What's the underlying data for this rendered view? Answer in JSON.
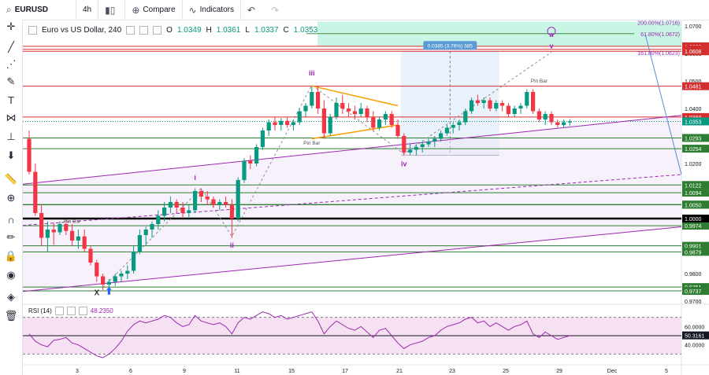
{
  "toolbar": {
    "symbol": "EURUSD",
    "interval": "4h",
    "compare_label": "Compare",
    "indicators_label": "Indicators"
  },
  "legend": {
    "title": "Euro vs US Dollar, 240",
    "o_label": "O",
    "o_value": "1.0349",
    "h_label": "H",
    "h_value": "1.0361",
    "l_label": "L",
    "l_value": "1.0337",
    "c_label": "C",
    "c_value": "1.0353"
  },
  "rsi": {
    "label": "RSI (14)",
    "value": "48.2350",
    "last": "50.3161"
  },
  "colors": {
    "up": "#089981",
    "down": "#f23645",
    "support": "#2e7d32",
    "resistance": "#d32f2f",
    "wave": "#9c27b0",
    "triangle": "#f59f00",
    "fib_zone": "#b2f2d8",
    "measure_zone": "#e3eefa",
    "rsi_band": "#f3d9ee"
  },
  "chart_data": {
    "type": "candlestick",
    "symbol": "EURUSD",
    "timeframe": "4h",
    "ylim": [
      0.97,
      1.072
    ],
    "x_ticks": [
      "3",
      "6",
      "9",
      "11",
      "15",
      "17",
      "21",
      "23",
      "25",
      "29",
      "Dec",
      "5"
    ],
    "y_ticks": [
      "1.0700",
      "1.0600",
      "1.0500",
      "1.0400",
      "1.0300",
      "1.0200",
      "1.0000",
      "0.9900",
      "0.9800",
      "0.9700"
    ],
    "resistance_levels": [
      "1.0626",
      "1.0615",
      "1.0608",
      "1.0481",
      "1.0369"
    ],
    "support_levels": [
      "1.0293",
      "1.0254",
      "1.0122",
      "1.0094",
      "1.0051",
      "1.0050",
      "0.9974",
      "0.9901",
      "0.9879",
      "0.9751",
      "0.9737"
    ],
    "parity_level": "1.0000",
    "current_price": "1.0353",
    "fib_labels": [
      "200.00%(1.0716)",
      "61.80%(1.0672)",
      "161.80%(1.0623)"
    ],
    "measure_label": "0.0385 (3.76%) 385",
    "wave_labels": [
      "i",
      "ii",
      "iii",
      "iv",
      "v",
      "a",
      "X"
    ],
    "pattern_labels": [
      "Pin Bar",
      "Pin Bar",
      "Pin Bar"
    ],
    "candles": [
      [
        1.029,
        1.032,
        1.016,
        1.017
      ],
      [
        1.017,
        1.02,
        1.001,
        1.002
      ],
      [
        1.002,
        1.005,
        0.99,
        0.993
      ],
      [
        0.993,
        0.999,
        0.988,
        0.996
      ],
      [
        0.996,
        0.9985,
        0.9905,
        0.995
      ],
      [
        0.995,
        0.999,
        0.994,
        0.998
      ],
      [
        0.998,
        0.9995,
        0.994,
        0.9955
      ],
      [
        0.9955,
        0.998,
        0.99,
        0.992
      ],
      [
        0.992,
        0.996,
        0.989,
        0.9935
      ],
      [
        0.9935,
        0.996,
        0.988,
        0.989
      ],
      [
        0.989,
        0.99,
        0.983,
        0.984
      ],
      [
        0.984,
        0.985,
        0.977,
        0.979
      ],
      [
        0.979,
        0.98,
        0.974,
        0.976
      ],
      [
        0.976,
        0.978,
        0.974,
        0.977
      ],
      [
        0.977,
        0.98,
        0.9755,
        0.979
      ],
      [
        0.979,
        0.981,
        0.977,
        0.98
      ],
      [
        0.98,
        0.983,
        0.978,
        0.981
      ],
      [
        0.981,
        0.99,
        0.98,
        0.988
      ],
      [
        0.988,
        0.996,
        0.987,
        0.994
      ],
      [
        0.994,
        0.997,
        0.99,
        0.996
      ],
      [
        0.996,
        0.999,
        0.993,
        0.998
      ],
      [
        0.998,
        1.003,
        0.996,
        1.001
      ],
      [
        1.001,
        1.006,
        0.999,
        1.004
      ],
      [
        1.004,
        1.008,
        1.002,
        1.006
      ],
      [
        1.006,
        1.007,
        1.002,
        1.004
      ],
      [
        1.004,
        1.006,
        1.0,
        1.002
      ],
      [
        1.002,
        1.005,
        1.0,
        1.003
      ],
      [
        1.003,
        1.011,
        1.002,
        1.01
      ],
      [
        1.01,
        1.011,
        1.006,
        1.008
      ],
      [
        1.008,
        1.01,
        1.005,
        1.007
      ],
      [
        1.007,
        1.008,
        1.004,
        1.005
      ],
      [
        1.005,
        1.007,
        1.003,
        1.006
      ],
      [
        1.006,
        1.008,
        1.004,
        1.005
      ],
      [
        1.005,
        1.007,
        0.993,
        1.0
      ],
      [
        1.0,
        1.015,
        0.999,
        1.014
      ],
      [
        1.014,
        1.022,
        1.013,
        1.021
      ],
      [
        1.021,
        1.023,
        1.018,
        1.02
      ],
      [
        1.02,
        1.027,
        1.019,
        1.026
      ],
      [
        1.026,
        1.033,
        1.025,
        1.032
      ],
      [
        1.032,
        1.036,
        1.03,
        1.035
      ],
      [
        1.035,
        1.037,
        1.032,
        1.034
      ],
      [
        1.034,
        1.0365,
        1.032,
        1.0355
      ],
      [
        1.0355,
        1.037,
        1.033,
        1.034
      ],
      [
        1.034,
        1.036,
        1.032,
        1.035
      ],
      [
        1.035,
        1.04,
        1.034,
        1.039
      ],
      [
        1.039,
        1.042,
        1.037,
        1.041
      ],
      [
        1.041,
        1.048,
        1.04,
        1.046
      ],
      [
        1.046,
        1.048,
        1.038,
        1.04
      ],
      [
        1.04,
        1.043,
        1.029,
        1.031
      ],
      [
        1.031,
        1.038,
        1.03,
        1.037
      ],
      [
        1.037,
        1.044,
        1.036,
        1.042
      ],
      [
        1.042,
        1.045,
        1.038,
        1.04
      ],
      [
        1.04,
        1.042,
        1.037,
        1.039
      ],
      [
        1.039,
        1.041,
        1.036,
        1.038
      ],
      [
        1.038,
        1.042,
        1.037,
        1.04
      ],
      [
        1.04,
        1.041,
        1.035,
        1.037
      ],
      [
        1.037,
        1.039,
        1.032,
        1.033
      ],
      [
        1.033,
        1.037,
        1.032,
        1.036
      ],
      [
        1.036,
        1.039,
        1.034,
        1.038
      ],
      [
        1.038,
        1.039,
        1.033,
        1.034
      ],
      [
        1.034,
        1.036,
        1.029,
        1.03
      ],
      [
        1.03,
        1.031,
        1.023,
        1.024
      ],
      [
        1.024,
        1.027,
        1.023,
        1.025
      ],
      [
        1.025,
        1.027,
        1.023,
        1.026
      ],
      [
        1.026,
        1.028,
        1.024,
        1.027
      ],
      [
        1.027,
        1.029,
        1.026,
        1.028
      ],
      [
        1.028,
        1.03,
        1.026,
        1.029
      ],
      [
        1.029,
        1.032,
        1.028,
        1.031
      ],
      [
        1.031,
        1.034,
        1.03,
        1.033
      ],
      [
        1.033,
        1.035,
        1.031,
        1.034
      ],
      [
        1.034,
        1.036,
        1.032,
        1.035
      ],
      [
        1.035,
        1.04,
        1.034,
        1.039
      ],
      [
        1.039,
        1.044,
        1.038,
        1.043
      ],
      [
        1.043,
        1.045,
        1.041,
        1.042
      ],
      [
        1.042,
        1.044,
        1.04,
        1.043
      ],
      [
        1.043,
        1.044,
        1.039,
        1.04
      ],
      [
        1.04,
        1.043,
        1.039,
        1.042
      ],
      [
        1.042,
        1.043,
        1.039,
        1.041
      ],
      [
        1.041,
        1.042,
        1.037,
        1.038
      ],
      [
        1.038,
        1.041,
        1.037,
        1.04
      ],
      [
        1.04,
        1.042,
        1.038,
        1.041
      ],
      [
        1.041,
        1.047,
        1.04,
        1.046
      ],
      [
        1.046,
        1.047,
        1.038,
        1.039
      ],
      [
        1.039,
        1.04,
        1.035,
        1.036
      ],
      [
        1.036,
        1.039,
        1.034,
        1.038
      ],
      [
        1.038,
        1.039,
        1.034,
        1.035
      ],
      [
        1.035,
        1.036,
        1.033,
        1.034
      ],
      [
        1.034,
        1.036,
        1.033,
        1.035
      ],
      [
        1.0349,
        1.0361,
        1.0337,
        1.0353
      ]
    ],
    "rsi": {
      "name": "RSI (14)",
      "ylim": [
        20,
        80
      ],
      "levels": [
        70,
        50,
        30
      ],
      "y_ticks": [
        "60.0000",
        "40.0000"
      ],
      "values": [
        52,
        44,
        40,
        38,
        45,
        46,
        48,
        42,
        40,
        36,
        32,
        28,
        26,
        30,
        36,
        44,
        55,
        62,
        66,
        64,
        66,
        68,
        72,
        70,
        64,
        60,
        62,
        72,
        66,
        64,
        62,
        64,
        60,
        52,
        64,
        70,
        68,
        72,
        76,
        74,
        70,
        72,
        68,
        70,
        72,
        74,
        76,
        66,
        52,
        60,
        66,
        62,
        58,
        56,
        60,
        54,
        48,
        56,
        58,
        50,
        42,
        36,
        40,
        42,
        44,
        48,
        50,
        56,
        60,
        62,
        64,
        68,
        70,
        64,
        66,
        60,
        64,
        60,
        56,
        60,
        62,
        66,
        52,
        48,
        54,
        50,
        46,
        48,
        50
      ]
    }
  }
}
